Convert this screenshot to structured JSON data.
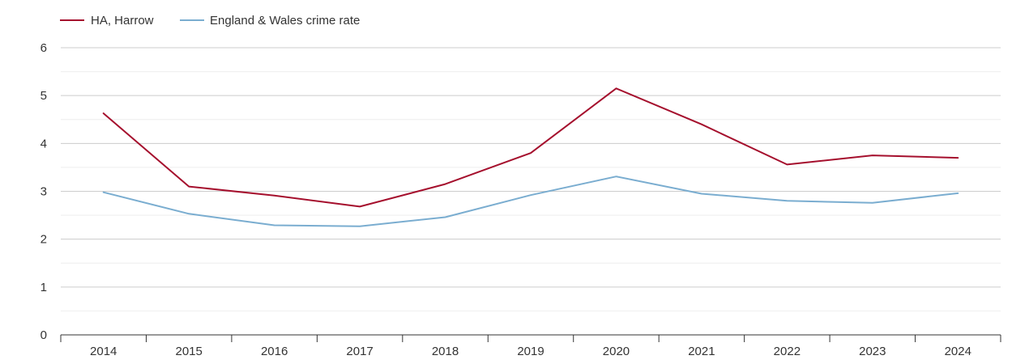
{
  "chart_data": {
    "type": "line",
    "title": "",
    "xlabel": "",
    "ylabel": "",
    "categories": [
      "2014",
      "2015",
      "2016",
      "2017",
      "2018",
      "2019",
      "2020",
      "2021",
      "2022",
      "2023",
      "2024"
    ],
    "ylim": [
      0,
      6
    ],
    "y_ticks": [
      "0",
      "1",
      "2",
      "3",
      "4",
      "5",
      "6"
    ],
    "legend_position": "top-left",
    "grid": true,
    "series": [
      {
        "name": "HA, Harrow",
        "color": "#a50f2d",
        "values": [
          4.63,
          3.1,
          2.91,
          2.68,
          3.15,
          3.8,
          5.15,
          4.4,
          3.56,
          3.75,
          3.7
        ]
      },
      {
        "name": "England & Wales crime rate",
        "color": "#7aadd0",
        "values": [
          2.98,
          2.53,
          2.29,
          2.27,
          2.46,
          2.92,
          3.31,
          2.95,
          2.8,
          2.76,
          2.96
        ]
      }
    ]
  }
}
